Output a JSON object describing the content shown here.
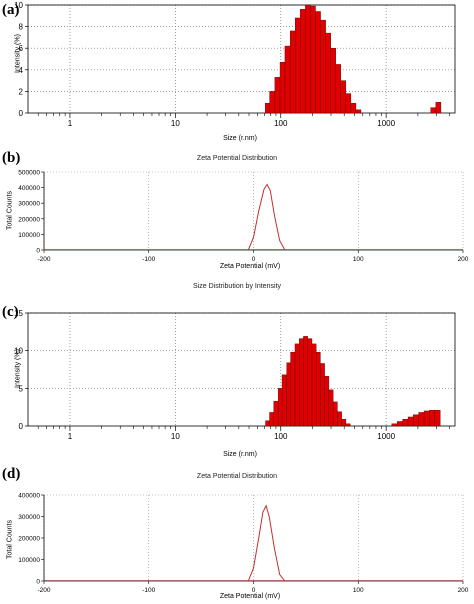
{
  "panels": {
    "a": {
      "label": "(a)"
    },
    "b": {
      "label": "(b)"
    },
    "c": {
      "label": "(c)"
    },
    "d": {
      "label": "(d)"
    }
  },
  "chart_data": [
    {
      "id": "a",
      "type": "bar",
      "title": "",
      "xlabel": "Size (r.nm)",
      "ylabel": "Intensity (%)",
      "xscale": "log",
      "xlim": [
        0.4,
        4500
      ],
      "ylim": [
        0,
        10
      ],
      "xticks": [
        1,
        10,
        100,
        1000
      ],
      "yticks": [
        0,
        2,
        4,
        6,
        8,
        10
      ],
      "grid": true,
      "bar_color": "#e00000",
      "bars": [
        {
          "x": 75,
          "y": 0.9
        },
        {
          "x": 83,
          "y": 2.0
        },
        {
          "x": 93,
          "y": 3.3
        },
        {
          "x": 104,
          "y": 4.7
        },
        {
          "x": 116,
          "y": 6.2
        },
        {
          "x": 130,
          "y": 7.6
        },
        {
          "x": 145,
          "y": 8.8
        },
        {
          "x": 162,
          "y": 9.6
        },
        {
          "x": 181,
          "y": 10.0
        },
        {
          "x": 202,
          "y": 9.9
        },
        {
          "x": 226,
          "y": 9.4
        },
        {
          "x": 252,
          "y": 8.6
        },
        {
          "x": 282,
          "y": 7.4
        },
        {
          "x": 315,
          "y": 6.0
        },
        {
          "x": 351,
          "y": 4.5
        },
        {
          "x": 392,
          "y": 3.0
        },
        {
          "x": 438,
          "y": 1.8
        },
        {
          "x": 489,
          "y": 0.9
        },
        {
          "x": 546,
          "y": 0.3
        },
        {
          "x": 2800,
          "y": 0.5
        },
        {
          "x": 3130,
          "y": 1.0
        }
      ]
    },
    {
      "id": "b",
      "type": "line",
      "title": "Zeta Potential Distribution",
      "xlabel": "Zeta Potential (mV)",
      "ylabel": "Total Counts",
      "xlim": [
        -200,
        200
      ],
      "ylim": [
        0,
        500000
      ],
      "xticks": [
        -200,
        -100,
        0,
        100,
        200
      ],
      "yticks": [
        0,
        100000,
        200000,
        300000,
        400000,
        500000
      ],
      "grid": true,
      "line_color": "#c03030",
      "x": [
        -5,
        0,
        5,
        10,
        13,
        16,
        20,
        25,
        30
      ],
      "y": [
        0,
        80000,
        250000,
        390000,
        420000,
        380000,
        220000,
        60000,
        0
      ]
    },
    {
      "id": "c",
      "type": "bar",
      "title": "Size Distribution by Intensity",
      "xlabel": "Size (r.nm)",
      "ylabel": "Intensity (%)",
      "xscale": "log",
      "xlim": [
        0.4,
        4500
      ],
      "ylim": [
        0,
        15
      ],
      "xticks": [
        1,
        10,
        100,
        1000
      ],
      "yticks": [
        0,
        5,
        10,
        15
      ],
      "grid": true,
      "bar_color": "#e00000",
      "bars": [
        {
          "x": 75,
          "y": 0.7
        },
        {
          "x": 82,
          "y": 1.8
        },
        {
          "x": 90,
          "y": 3.3
        },
        {
          "x": 99,
          "y": 5.0
        },
        {
          "x": 108,
          "y": 6.8
        },
        {
          "x": 119,
          "y": 8.4
        },
        {
          "x": 130,
          "y": 9.8
        },
        {
          "x": 143,
          "y": 10.9
        },
        {
          "x": 157,
          "y": 11.6
        },
        {
          "x": 172,
          "y": 11.9
        },
        {
          "x": 189,
          "y": 11.6
        },
        {
          "x": 207,
          "y": 10.9
        },
        {
          "x": 227,
          "y": 9.8
        },
        {
          "x": 249,
          "y": 8.3
        },
        {
          "x": 273,
          "y": 6.6
        },
        {
          "x": 300,
          "y": 4.8
        },
        {
          "x": 329,
          "y": 3.2
        },
        {
          "x": 361,
          "y": 1.9
        },
        {
          "x": 396,
          "y": 0.9
        },
        {
          "x": 435,
          "y": 0.3
        },
        {
          "x": 1200,
          "y": 0.3
        },
        {
          "x": 1350,
          "y": 0.6
        },
        {
          "x": 1520,
          "y": 0.9
        },
        {
          "x": 1710,
          "y": 1.2
        },
        {
          "x": 1920,
          "y": 1.5
        },
        {
          "x": 2160,
          "y": 1.8
        },
        {
          "x": 2430,
          "y": 2.0
        },
        {
          "x": 2730,
          "y": 2.1
        },
        {
          "x": 3070,
          "y": 2.1
        }
      ]
    },
    {
      "id": "d",
      "type": "line",
      "title": "Zeta Potential Distribution",
      "xlabel": "Zeta Potential (mV)",
      "ylabel": "Total Counts",
      "xlim": [
        -200,
        200
      ],
      "ylim": [
        0,
        400000
      ],
      "xticks": [
        -200,
        -100,
        0,
        100,
        200
      ],
      "yticks": [
        0,
        100000,
        200000,
        300000,
        400000
      ],
      "grid": true,
      "line_color": "#c03030",
      "x": [
        -5,
        0,
        5,
        9,
        12,
        15,
        20,
        25,
        30
      ],
      "y": [
        0,
        60000,
        200000,
        320000,
        350000,
        300000,
        150000,
        30000,
        0
      ]
    }
  ]
}
